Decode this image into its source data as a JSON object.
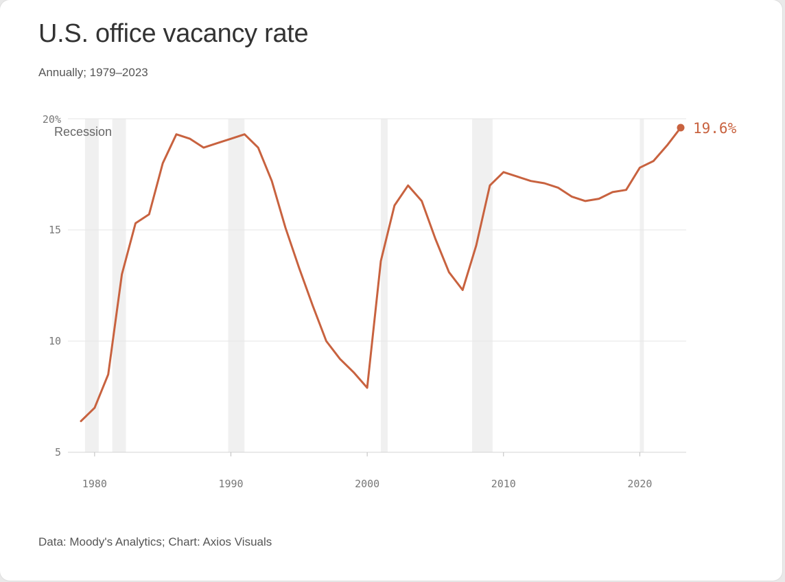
{
  "chart_data": {
    "type": "line",
    "title": "U.S. office vacancy rate",
    "subtitle": "Annually; 1979–2023",
    "source": "Data: Moody's Analytics; Chart: Axios Visuals",
    "xlabel": "",
    "ylabel": "",
    "xlim": [
      1979,
      2023
    ],
    "ylim": [
      5,
      20
    ],
    "x_ticks": [
      1980,
      1990,
      2000,
      2010,
      2020
    ],
    "x_tick_labels": [
      "1980",
      "1990",
      "2000",
      "2010",
      "2020"
    ],
    "y_ticks": [
      5,
      10,
      15,
      20
    ],
    "y_tick_labels": [
      "5",
      "10",
      "15",
      "20%"
    ],
    "grid": true,
    "line_color": "#c8623f",
    "recession_color": "#f0f0f0",
    "recession_label": "Recession",
    "recessions": [
      {
        "start": 1979.3,
        "end": 1980.3
      },
      {
        "start": 1981.3,
        "end": 1982.3
      },
      {
        "start": 1989.8,
        "end": 1991.0
      },
      {
        "start": 2001.0,
        "end": 2001.5
      },
      {
        "start": 2007.7,
        "end": 2009.2
      },
      {
        "start": 2020.0,
        "end": 2020.3
      }
    ],
    "series": [
      {
        "name": "Office vacancy rate",
        "x": [
          1979,
          1980,
          1981,
          1982,
          1983,
          1984,
          1985,
          1986,
          1987,
          1988,
          1989,
          1990,
          1991,
          1992,
          1993,
          1994,
          1995,
          1996,
          1997,
          1998,
          1999,
          2000,
          2001,
          2002,
          2003,
          2004,
          2005,
          2006,
          2007,
          2008,
          2009,
          2010,
          2011,
          2012,
          2013,
          2014,
          2015,
          2016,
          2017,
          2018,
          2019,
          2020,
          2021,
          2022,
          2023
        ],
        "values": [
          6.4,
          7.0,
          8.5,
          13.0,
          15.3,
          15.7,
          18.0,
          19.3,
          19.1,
          18.7,
          18.9,
          19.1,
          19.3,
          18.7,
          17.2,
          15.1,
          13.3,
          11.6,
          10.0,
          9.2,
          8.6,
          7.9,
          13.6,
          16.1,
          17.0,
          16.3,
          14.6,
          13.1,
          12.3,
          14.3,
          17.0,
          17.6,
          17.4,
          17.2,
          17.1,
          16.9,
          16.5,
          16.3,
          16.4,
          16.7,
          16.8,
          17.8,
          18.1,
          18.8,
          19.6
        ]
      }
    ],
    "annotations": [
      {
        "x": 2023,
        "y": 19.6,
        "text": "19.6%"
      }
    ]
  }
}
